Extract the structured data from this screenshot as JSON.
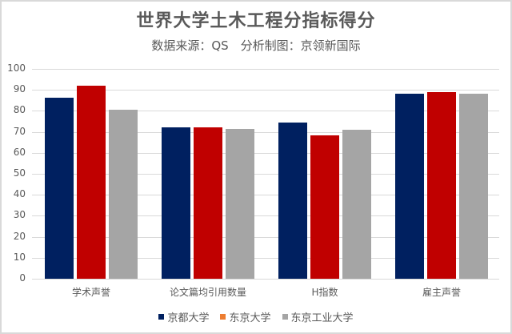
{
  "chart_data": {
    "type": "bar",
    "title": "世界大学土木工程分指标得分",
    "subtitle": "数据来源：QS　分析制图：京领新国际",
    "categories": [
      "学术声誉",
      "论文篇均引用数量",
      "H指数",
      "雇主声誉"
    ],
    "series": [
      {
        "name": "京都大学",
        "color": "#002060",
        "legend_color": "#002060",
        "values": [
          86.4,
          72.0,
          74.4,
          88.0
        ]
      },
      {
        "name": "东京大学",
        "color": "#C00000",
        "legend_color": "#ED7D31",
        "values": [
          92.0,
          72.3,
          68.4,
          89.0
        ]
      },
      {
        "name": "东京工业大学",
        "color": "#A5A5A5",
        "legend_color": "#A5A5A5",
        "values": [
          80.5,
          71.3,
          70.9,
          88.0
        ]
      }
    ],
    "xlabel": "",
    "ylabel": "",
    "ylim": [
      0,
      100
    ],
    "yticks": [
      "0",
      "10",
      "20",
      "30",
      "40",
      "50",
      "60",
      "70",
      "80",
      "90",
      "100"
    ],
    "grid": true,
    "legend_position": "bottom"
  }
}
